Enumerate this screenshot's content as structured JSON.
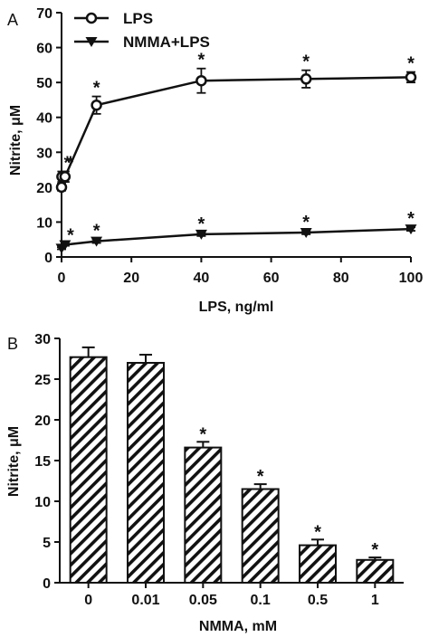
{
  "chart_data": [
    {
      "panel": "A",
      "type": "line",
      "xlabel": "LPS, ng/ml",
      "ylabel": "Nitrite, μM",
      "xlim": [
        0,
        100
      ],
      "ylim": [
        0,
        70
      ],
      "xticks": [
        "0",
        "20",
        "40",
        "60",
        "80",
        "100"
      ],
      "yticks": [
        "0",
        "10",
        "20",
        "30",
        "40",
        "50",
        "60",
        "70"
      ],
      "legend": "top-left",
      "series": [
        {
          "name": "LPS",
          "marker": "circle",
          "x": [
            0,
            0.1,
            1,
            10,
            40,
            70,
            100
          ],
          "y": [
            20,
            23,
            23,
            43.5,
            50.5,
            51,
            51.5
          ],
          "err": [
            1,
            1.5,
            1.5,
            2.5,
            3.5,
            2.5,
            1.5
          ],
          "significant": [
            false,
            true,
            true,
            true,
            true,
            true,
            true
          ]
        },
        {
          "name": "NMMA+LPS",
          "marker": "triangle-down",
          "x": [
            0,
            1,
            10,
            40,
            70,
            100
          ],
          "y": [
            2.5,
            3.5,
            4.5,
            6.5,
            7,
            8
          ],
          "err": [
            0.3,
            0.3,
            0.5,
            0.5,
            0.5,
            0.5
          ],
          "significant": [
            false,
            true,
            true,
            true,
            true,
            true
          ]
        }
      ]
    },
    {
      "panel": "B",
      "type": "bar",
      "xlabel": "NMMA, mM",
      "ylabel": "Nitrite, μM",
      "ylim": [
        0,
        30
      ],
      "yticks": [
        "0",
        "5",
        "10",
        "15",
        "20",
        "25",
        "30"
      ],
      "categories": [
        "0",
        "0.01",
        "0.05",
        "0.1",
        "0.5",
        "1"
      ],
      "values": [
        27.7,
        27,
        16.6,
        11.5,
        4.6,
        2.8
      ],
      "err": [
        1.2,
        1.0,
        0.7,
        0.6,
        0.7,
        0.3
      ],
      "significant": [
        false,
        false,
        true,
        true,
        true,
        true
      ]
    }
  ],
  "star_symbol": "*"
}
